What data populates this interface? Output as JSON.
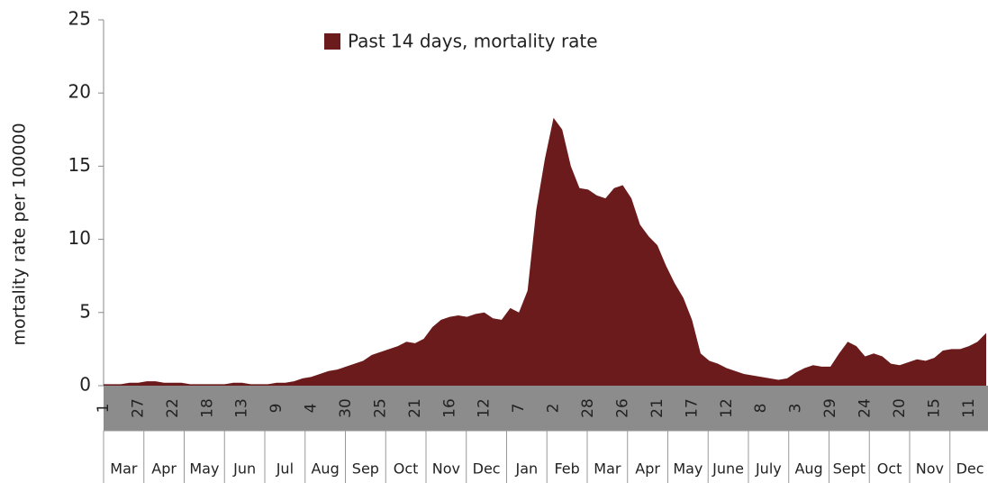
{
  "chart_data": {
    "type": "area",
    "y_label": "mortality rate per 100000",
    "ylim": [
      0,
      25
    ],
    "yticks": [
      0,
      5,
      10,
      15,
      20,
      25
    ],
    "categories": [
      "1",
      null,
      null,
      null,
      "27",
      null,
      null,
      null,
      "22",
      null,
      null,
      null,
      "18",
      null,
      null,
      null,
      "13",
      null,
      null,
      null,
      "9",
      null,
      null,
      null,
      "4",
      null,
      null,
      null,
      "30",
      null,
      null,
      null,
      "25",
      null,
      null,
      null,
      "21",
      null,
      null,
      null,
      "16",
      null,
      null,
      null,
      "12",
      null,
      null,
      null,
      "7",
      null,
      null,
      null,
      "2",
      null,
      null,
      null,
      "28",
      null,
      null,
      null,
      "26",
      null,
      null,
      null,
      "21",
      null,
      null,
      null,
      "17",
      null,
      null,
      null,
      "12",
      null,
      null,
      null,
      "8",
      null,
      null,
      null,
      "3",
      null,
      null,
      null,
      "29",
      null,
      null,
      null,
      "24",
      null,
      null,
      null,
      "20",
      null,
      null,
      null,
      "15",
      null,
      null,
      null,
      "11",
      null,
      null
    ],
    "month_labels": [
      "Mar",
      "Apr",
      "May",
      "Jun",
      "Jul",
      "Aug",
      "Sep",
      "Oct",
      "Nov",
      "Dec",
      "Jan",
      "Feb",
      "Mar",
      "Apr",
      "May",
      "June",
      "July",
      "Aug",
      "Sept",
      "Oct",
      "Nov",
      "Dec"
    ],
    "series": [
      {
        "name": "Past 14 days, mortality rate",
        "color": "#6b1b1b",
        "values": [
          0.1,
          0.1,
          0.1,
          0.2,
          0.2,
          0.3,
          0.3,
          0.2,
          0.2,
          0.2,
          0.1,
          0.1,
          0.1,
          0.1,
          0.1,
          0.2,
          0.2,
          0.1,
          0.1,
          0.1,
          0.2,
          0.2,
          0.3,
          0.5,
          0.6,
          0.8,
          1.0,
          1.1,
          1.3,
          1.5,
          1.7,
          2.1,
          2.3,
          2.5,
          2.7,
          3.0,
          2.9,
          3.2,
          4.0,
          4.5,
          4.7,
          4.8,
          4.7,
          4.9,
          5.0,
          4.6,
          4.5,
          5.3,
          5.0,
          6.5,
          12.0,
          15.5,
          18.3,
          17.5,
          15.0,
          13.5,
          13.4,
          13.0,
          12.8,
          13.5,
          13.7,
          12.8,
          11.0,
          10.2,
          9.6,
          8.2,
          7.0,
          6.0,
          4.5,
          2.2,
          1.7,
          1.5,
          1.2,
          1.0,
          0.8,
          0.7,
          0.6,
          0.5,
          0.4,
          0.5,
          0.9,
          1.2,
          1.4,
          1.3,
          1.3,
          2.2,
          3.0,
          2.7,
          2.0,
          2.2,
          2.0,
          1.5,
          1.4,
          1.6,
          1.8,
          1.7,
          1.9,
          2.4,
          2.5,
          2.5,
          2.7,
          3.0,
          3.6
        ]
      }
    ]
  }
}
